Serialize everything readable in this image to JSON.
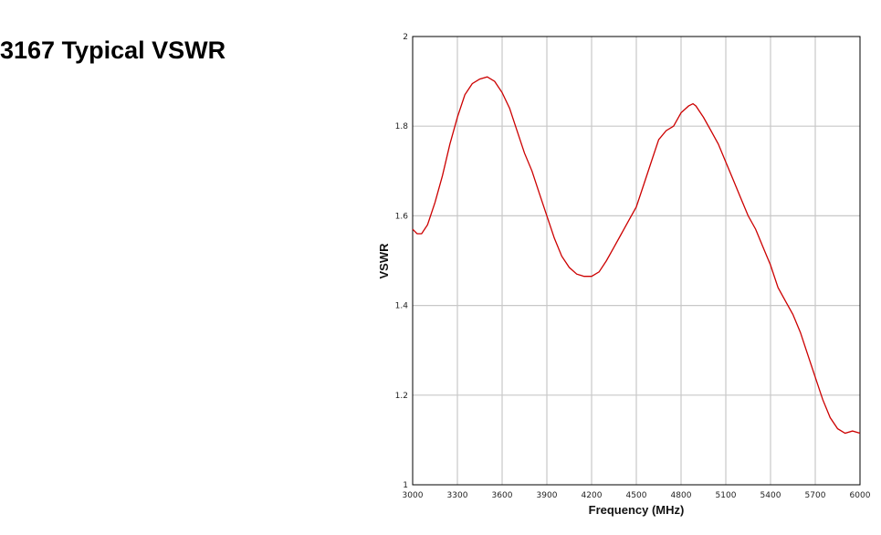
{
  "page": {
    "title": "3167 Typical VSWR"
  },
  "chart_data": {
    "type": "line",
    "title": "3167 Typical VSWR",
    "xlabel": "Frequency (MHz)",
    "ylabel": "VSWR",
    "xlim": [
      3000,
      6000
    ],
    "ylim": [
      1,
      2
    ],
    "xticks": [
      3000,
      3300,
      3600,
      3900,
      4200,
      4500,
      4800,
      5100,
      5400,
      5700,
      6000
    ],
    "yticks": [
      1,
      1.2,
      1.4,
      1.6,
      1.8,
      2
    ],
    "grid": true,
    "line_color": "#cc0000",
    "series": [
      {
        "x": [
          3000,
          3030,
          3060,
          3100,
          3150,
          3200,
          3250,
          3300,
          3350,
          3400,
          3450,
          3500,
          3550,
          3600,
          3650,
          3700,
          3750,
          3800,
          3850,
          3900,
          3950,
          4000,
          4050,
          4100,
          4150,
          4200,
          4250,
          4300,
          4350,
          4400,
          4450,
          4500,
          4550,
          4600,
          4650,
          4700,
          4750,
          4800,
          4850,
          4880,
          4900,
          4950,
          5000,
          5050,
          5100,
          5150,
          5200,
          5250,
          5300,
          5350,
          5400,
          5450,
          5500,
          5550,
          5600,
          5650,
          5700,
          5750,
          5800,
          5850,
          5900,
          5950,
          6000
        ],
        "y": [
          1.57,
          1.56,
          1.56,
          1.58,
          1.63,
          1.69,
          1.76,
          1.82,
          1.87,
          1.895,
          1.905,
          1.91,
          1.9,
          1.875,
          1.84,
          1.79,
          1.74,
          1.7,
          1.65,
          1.6,
          1.55,
          1.51,
          1.485,
          1.47,
          1.465,
          1.465,
          1.475,
          1.5,
          1.53,
          1.56,
          1.59,
          1.62,
          1.67,
          1.72,
          1.77,
          1.79,
          1.8,
          1.83,
          1.845,
          1.85,
          1.845,
          1.82,
          1.79,
          1.76,
          1.72,
          1.68,
          1.64,
          1.6,
          1.57,
          1.53,
          1.49,
          1.44,
          1.41,
          1.38,
          1.34,
          1.29,
          1.24,
          1.19,
          1.15,
          1.125,
          1.115,
          1.12,
          1.115
        ]
      }
    ]
  }
}
